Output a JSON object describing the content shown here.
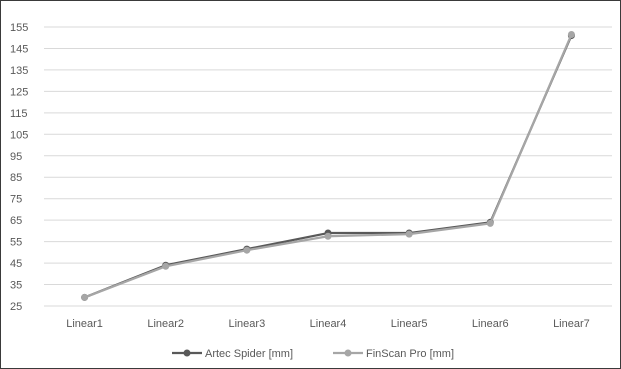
{
  "chart_data": {
    "type": "line",
    "title": "",
    "xlabel": "",
    "ylabel": "",
    "categories": [
      "Linear1",
      "Linear2",
      "Linear3",
      "Linear4",
      "Linear5",
      "Linear6",
      "Linear7"
    ],
    "y_ticks": [
      25,
      35,
      45,
      55,
      65,
      75,
      85,
      95,
      105,
      115,
      125,
      135,
      145,
      155
    ],
    "ylim": [
      25,
      155
    ],
    "grid": true,
    "legend_position": "bottom",
    "series": [
      {
        "name": "Artec Spider [mm]",
        "color": "#595959",
        "values": [
          29,
          44,
          51.5,
          59,
          59,
          64,
          151
        ]
      },
      {
        "name": "FinScan Pro [mm]",
        "color": "#a6a6a6",
        "values": [
          29,
          43.5,
          51,
          57.5,
          58.5,
          63.5,
          151.5
        ]
      }
    ]
  }
}
